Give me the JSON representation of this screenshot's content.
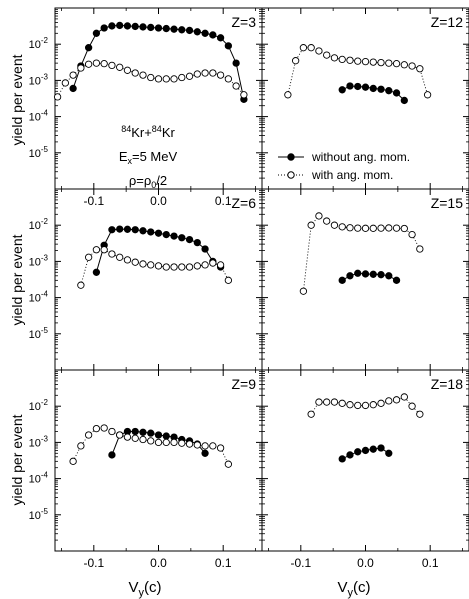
{
  "figure": {
    "ylabel": "yield per event",
    "xlabel_main": "V",
    "xlabel_sub": "y",
    "xlabel_tail": "(c)",
    "reaction": {
      "sup1": "84",
      "el1": "Kr+",
      "sup2": "84",
      "el2": "Kr"
    },
    "excitation": {
      "pre": "E",
      "sub": "x",
      "post": "=5 MeV"
    },
    "density": {
      "pre": "ρ=ρ",
      "sub": "0",
      "post": "/2"
    }
  },
  "legend": {
    "location": "lower-right of Z=12 panel",
    "items": [
      {
        "label": "without ang. mom.",
        "marker": "filled-circle",
        "line": "solid"
      },
      {
        "label": "with ang. mom.",
        "marker": "open-circle",
        "line": "dotted"
      }
    ]
  },
  "chart_data": [
    {
      "type": "scatter",
      "panel": "Z=3",
      "label": "Z=3",
      "xlim": [
        -0.16,
        0.16
      ],
      "ylim": [
        1e-06,
        0.1
      ],
      "yscale": "log",
      "x_tick_labels": [
        "-0.1",
        "0.0",
        "0.1"
      ],
      "y_tick_labels": [
        "10-2",
        "10-3",
        "10-4",
        "10-5"
      ],
      "series": [
        {
          "name": "without ang. mom.",
          "x": [
            -0.132,
            -0.12,
            -0.108,
            -0.096,
            -0.084,
            -0.072,
            -0.06,
            -0.048,
            -0.036,
            -0.024,
            -0.012,
            0.0,
            0.012,
            0.024,
            0.036,
            0.048,
            0.06,
            0.072,
            0.084,
            0.096,
            0.108,
            0.12,
            0.132
          ],
          "y": [
            0.0006,
            0.0025,
            0.008,
            0.02,
            0.028,
            0.032,
            0.033,
            0.032,
            0.031,
            0.03,
            0.029,
            0.028,
            0.027,
            0.026,
            0.025,
            0.024,
            0.022,
            0.02,
            0.018,
            0.015,
            0.009,
            0.003,
            0.0003
          ]
        },
        {
          "name": "with ang. mom.",
          "x": [
            -0.156,
            -0.144,
            -0.132,
            -0.12,
            -0.108,
            -0.096,
            -0.084,
            -0.072,
            -0.06,
            -0.048,
            -0.036,
            -0.024,
            -0.012,
            0.0,
            0.012,
            0.024,
            0.036,
            0.048,
            0.06,
            0.072,
            0.084,
            0.096,
            0.108,
            0.12,
            0.132
          ],
          "y": [
            0.00035,
            0.00085,
            0.0014,
            0.0022,
            0.0028,
            0.003,
            0.0029,
            0.0026,
            0.0023,
            0.0019,
            0.0016,
            0.0014,
            0.0012,
            0.0011,
            0.0011,
            0.0011,
            0.0012,
            0.0013,
            0.0015,
            0.0016,
            0.0016,
            0.0014,
            0.0011,
            0.0007,
            0.0004
          ]
        }
      ]
    },
    {
      "type": "scatter",
      "panel": "Z=12",
      "label": "Z=12",
      "xlim": [
        -0.16,
        0.16
      ],
      "ylim": [
        1e-06,
        0.1
      ],
      "yscale": "log",
      "x_tick_labels": [],
      "y_tick_labels": [],
      "series": [
        {
          "name": "without ang. mom.",
          "x": [
            -0.036,
            -0.024,
            -0.012,
            0.0,
            0.012,
            0.024,
            0.036,
            0.048,
            0.06
          ],
          "y": [
            0.00055,
            0.0007,
            0.00068,
            0.00065,
            0.0006,
            0.00057,
            0.00052,
            0.00045,
            0.00028
          ]
        },
        {
          "name": "with ang. mom.",
          "x": [
            -0.12,
            -0.108,
            -0.096,
            -0.084,
            -0.072,
            -0.06,
            -0.048,
            -0.036,
            -0.024,
            -0.012,
            0.0,
            0.012,
            0.024,
            0.036,
            0.048,
            0.06,
            0.072,
            0.084,
            0.096
          ],
          "y": [
            0.0004,
            0.0035,
            0.008,
            0.008,
            0.0065,
            0.005,
            0.0042,
            0.0038,
            0.0036,
            0.0034,
            0.0033,
            0.0032,
            0.0031,
            0.003,
            0.0029,
            0.0027,
            0.0025,
            0.0021,
            0.0004
          ]
        }
      ]
    },
    {
      "type": "scatter",
      "panel": "Z=6",
      "label": "Z=6",
      "xlim": [
        -0.16,
        0.16
      ],
      "ylim": [
        1e-06,
        0.1
      ],
      "yscale": "log",
      "x_tick_labels": [],
      "y_tick_labels": [
        "10-2",
        "10-3",
        "10-4",
        "10-5"
      ],
      "series": [
        {
          "name": "without ang. mom.",
          "x": [
            -0.096,
            -0.084,
            -0.072,
            -0.06,
            -0.048,
            -0.036,
            -0.024,
            -0.012,
            0.0,
            0.012,
            0.024,
            0.036,
            0.048,
            0.06,
            0.072,
            0.084,
            0.096
          ],
          "y": [
            0.0005,
            0.0028,
            0.0075,
            0.0078,
            0.0077,
            0.0075,
            0.007,
            0.0065,
            0.006,
            0.0055,
            0.005,
            0.0045,
            0.004,
            0.0033,
            0.0022,
            0.001,
            0.0007
          ]
        },
        {
          "name": "with ang. mom.",
          "x": [
            -0.12,
            -0.108,
            -0.096,
            -0.084,
            -0.072,
            -0.06,
            -0.048,
            -0.036,
            -0.024,
            -0.012,
            0.0,
            0.012,
            0.024,
            0.036,
            0.048,
            0.06,
            0.072,
            0.084,
            0.096,
            0.108
          ],
          "y": [
            0.00022,
            0.0013,
            0.0021,
            0.0021,
            0.0016,
            0.0013,
            0.0011,
            0.00095,
            0.00085,
            0.0008,
            0.00075,
            0.0007,
            0.0007,
            0.0007,
            0.0007,
            0.00075,
            0.0008,
            0.0009,
            0.0008,
            0.0003
          ]
        }
      ]
    },
    {
      "type": "scatter",
      "panel": "Z=15",
      "label": "Z=15",
      "xlim": [
        -0.16,
        0.16
      ],
      "ylim": [
        1e-06,
        0.1
      ],
      "yscale": "log",
      "x_tick_labels": [],
      "y_tick_labels": [],
      "series": [
        {
          "name": "without ang. mom.",
          "x": [
            -0.036,
            -0.024,
            -0.012,
            0.0,
            0.012,
            0.024,
            0.036,
            0.048
          ],
          "y": [
            0.0003,
            0.0004,
            0.00047,
            0.00045,
            0.00044,
            0.00043,
            0.0004,
            0.0003
          ]
        },
        {
          "name": "with ang. mom.",
          "x": [
            -0.096,
            -0.084,
            -0.072,
            -0.06,
            -0.048,
            -0.036,
            -0.024,
            -0.012,
            0.0,
            0.012,
            0.024,
            0.036,
            0.048,
            0.06,
            0.072,
            0.084
          ],
          "y": [
            0.00015,
            0.01,
            0.018,
            0.013,
            0.01,
            0.009,
            0.0085,
            0.0083,
            0.0082,
            0.0082,
            0.0083,
            0.0084,
            0.0083,
            0.0081,
            0.0055,
            0.0022
          ]
        }
      ]
    },
    {
      "type": "scatter",
      "panel": "Z=9",
      "label": "Z=9",
      "xlim": [
        -0.16,
        0.16
      ],
      "ylim": [
        1e-06,
        0.1
      ],
      "yscale": "log",
      "x_tick_labels": [
        "-0.1",
        "0.0",
        "0.1"
      ],
      "y_tick_labels": [
        "10-2",
        "10-3",
        "10-4",
        "10-5"
      ],
      "series": [
        {
          "name": "without ang. mom.",
          "x": [
            -0.072,
            -0.06,
            -0.048,
            -0.036,
            -0.024,
            -0.012,
            0.0,
            0.012,
            0.024,
            0.036,
            0.048,
            0.06,
            0.072
          ],
          "y": [
            0.00045,
            0.0016,
            0.002,
            0.002,
            0.0019,
            0.0018,
            0.0016,
            0.0015,
            0.0014,
            0.0012,
            0.0011,
            0.0009,
            0.0005
          ]
        },
        {
          "name": "with ang. mom.",
          "x": [
            -0.132,
            -0.12,
            -0.108,
            -0.096,
            -0.084,
            -0.072,
            -0.06,
            -0.048,
            -0.036,
            -0.024,
            -0.012,
            0.0,
            0.012,
            0.024,
            0.036,
            0.048,
            0.06,
            0.072,
            0.084,
            0.096,
            0.108
          ],
          "y": [
            0.0003,
            0.0008,
            0.0016,
            0.0024,
            0.0025,
            0.002,
            0.0016,
            0.0014,
            0.0013,
            0.0012,
            0.0011,
            0.001,
            0.001,
            0.001,
            0.00095,
            0.0009,
            0.00085,
            0.0008,
            0.0008,
            0.0007,
            0.00025
          ]
        }
      ]
    },
    {
      "type": "scatter",
      "panel": "Z=18",
      "label": "Z=18",
      "xlim": [
        -0.16,
        0.16
      ],
      "ylim": [
        1e-06,
        0.1
      ],
      "yscale": "log",
      "x_tick_labels": [
        "-0.1",
        "0.0",
        "0.1"
      ],
      "y_tick_labels": [],
      "series": [
        {
          "name": "without ang. mom.",
          "x": [
            -0.036,
            -0.024,
            -0.012,
            0.0,
            0.012,
            0.024,
            0.036
          ],
          "y": [
            0.00035,
            0.00045,
            0.00055,
            0.0006,
            0.00065,
            0.0007,
            0.0005
          ]
        },
        {
          "name": "with ang. mom.",
          "x": [
            -0.084,
            -0.072,
            -0.06,
            -0.048,
            -0.036,
            -0.024,
            -0.012,
            0.0,
            0.012,
            0.024,
            0.036,
            0.048,
            0.06,
            0.072,
            0.084
          ],
          "y": [
            0.006,
            0.013,
            0.013,
            0.013,
            0.012,
            0.011,
            0.0105,
            0.0105,
            0.011,
            0.012,
            0.014,
            0.015,
            0.018,
            0.01,
            0.006
          ]
        }
      ]
    }
  ]
}
